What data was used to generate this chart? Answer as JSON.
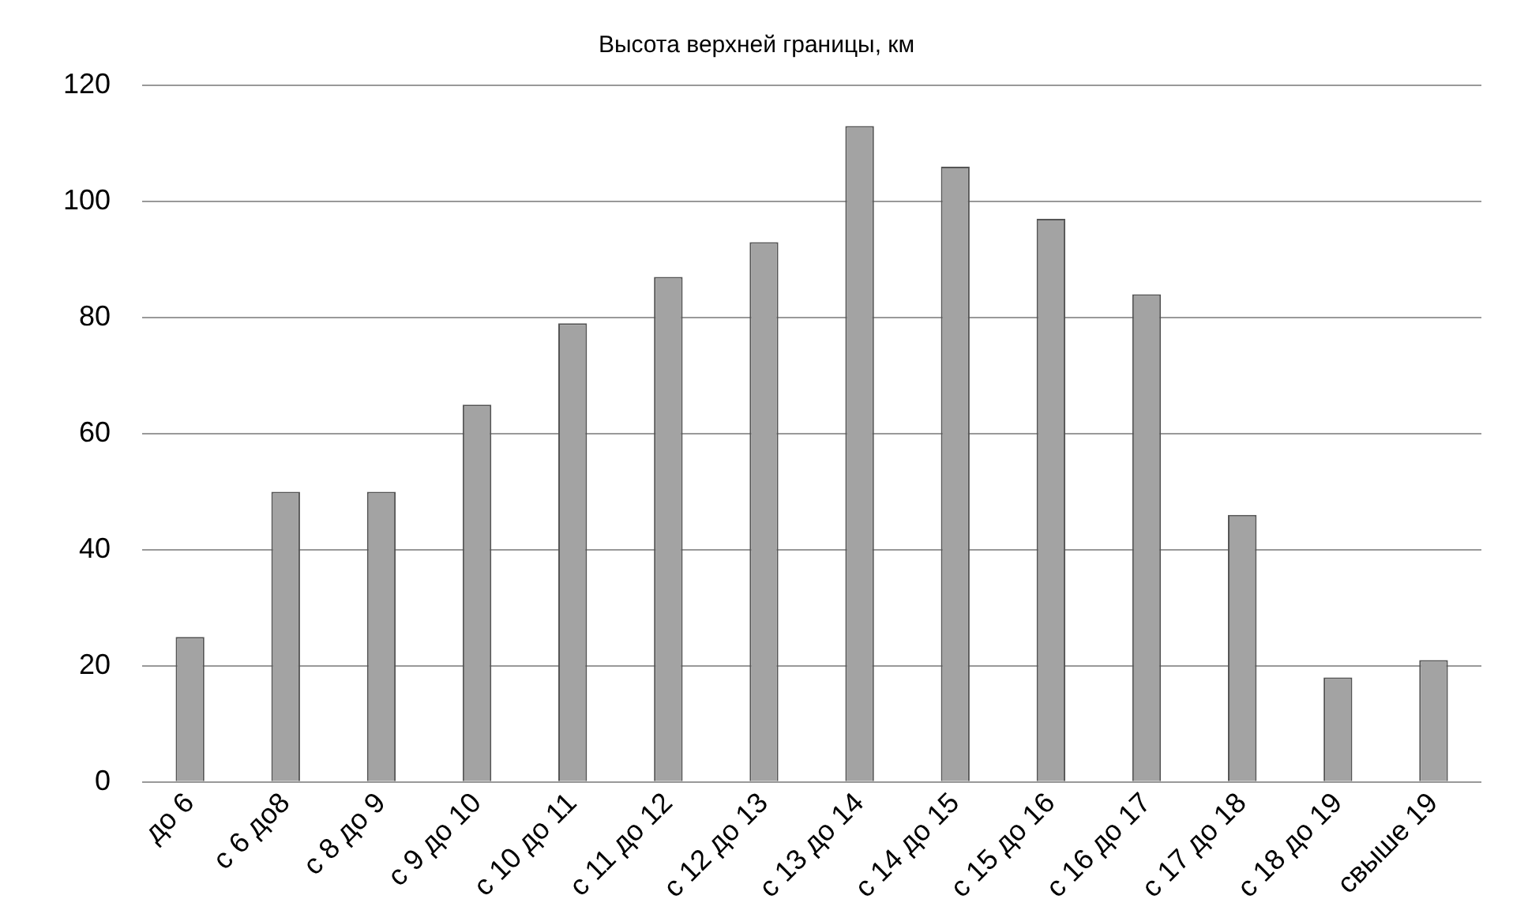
{
  "chart_data": {
    "type": "bar",
    "title": "Высота верхней границы, км",
    "categories": [
      "до 6",
      "с 6 до8",
      "с 8 до 9",
      "с 9 до 10",
      "с 10 до 11",
      "с 11 до 12",
      "с 12 до 13",
      "с 13 до 14",
      "с 14 до 15",
      "с 15 до 16",
      "с 16 до 17",
      "с 17 до 18",
      "с 18 до 19",
      "свыше 19"
    ],
    "values": [
      25,
      50,
      50,
      65,
      79,
      87,
      93,
      113,
      106,
      97,
      84,
      46,
      18,
      21
    ],
    "color": "#a3a3a3",
    "ylim": [
      0,
      120
    ],
    "yticks": [
      0,
      20,
      40,
      60,
      80,
      100,
      120
    ],
    "grid": "y",
    "legend": false
  }
}
